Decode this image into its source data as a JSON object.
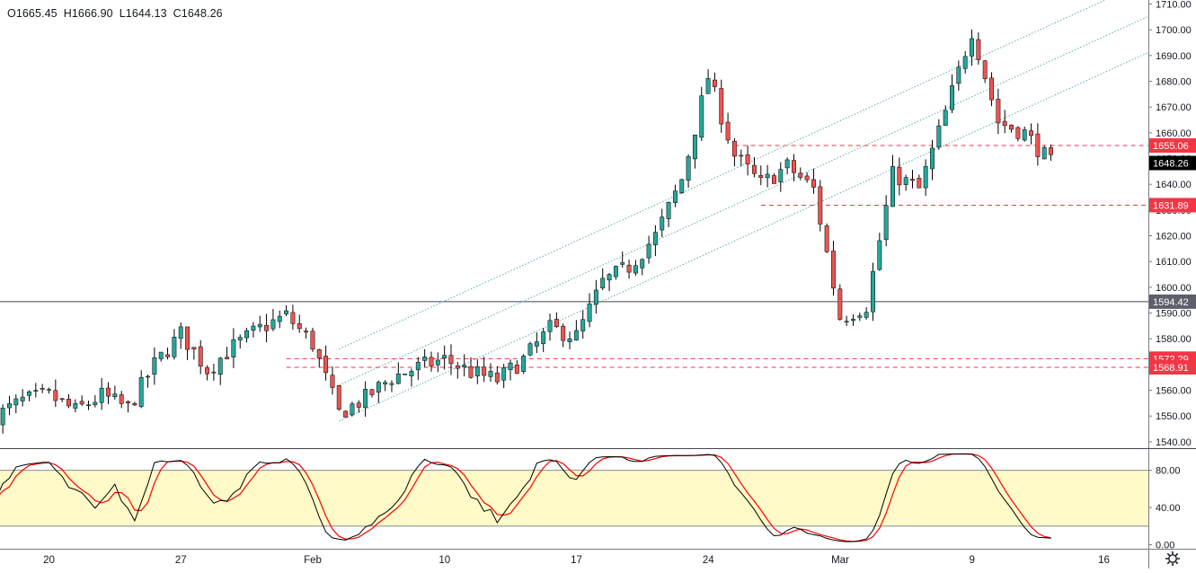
{
  "header": {
    "open_text": "O1665.45",
    "high_text": "H1666.90",
    "low_text": "L1644.13",
    "close_text": "C1648.26"
  },
  "colors": {
    "up": "#26a69a",
    "down": "#ef5350",
    "level_line": "#f23645",
    "last_price_label": "#000000",
    "h_line": "#434651",
    "channel": "#5fa8b3",
    "stoch_k": "#000000",
    "stoch_d": "#ff0000",
    "stoch_band": "#fffac8"
  },
  "settings_icon": "gear-icon",
  "chart_data": {
    "type": "candlestick",
    "price_axis": {
      "ylim": [
        1535,
        1713
      ],
      "ticks": [
        1540,
        1550,
        1560,
        1570,
        1580,
        1590,
        1600,
        1610,
        1620,
        1630,
        1640,
        1650,
        1660,
        1670,
        1680,
        1690,
        1700,
        1710
      ],
      "tick_labels": [
        "1540.00",
        "1550.00",
        "1560.00",
        "1570.00",
        "1580.00",
        "1590.00",
        "1600.00",
        "1610.00",
        "1620.00",
        "1630.00",
        "1640.00",
        "1650.00",
        "1660.00",
        "1670.00",
        "1680.00",
        "1690.00",
        "1700.00",
        "1710.00"
      ]
    },
    "time_axis": {
      "labels": [
        {
          "label": "20",
          "date": "2020-01-20"
        },
        {
          "label": "27",
          "date": "2020-01-27"
        },
        {
          "label": "Feb",
          "date": "2020-02-03"
        },
        {
          "label": "10",
          "date": "2020-02-10"
        },
        {
          "label": "17",
          "date": "2020-02-17"
        },
        {
          "label": "24",
          "date": "2020-02-24"
        },
        {
          "label": "Mar",
          "date": "2020-03-02"
        },
        {
          "label": "9",
          "date": "2020-03-09"
        },
        {
          "label": "16",
          "date": "2020-03-16"
        }
      ]
    },
    "price_path": [
      [
        "2020-01-16",
        1550
      ],
      [
        "2020-01-17",
        1556
      ],
      [
        "2020-01-20",
        1558
      ],
      [
        "2020-01-21",
        1552
      ],
      [
        "2020-01-22",
        1558
      ],
      [
        "2020-01-23",
        1553
      ],
      [
        "2020-01-24",
        1570
      ],
      [
        "2020-01-27",
        1582
      ],
      [
        "2020-01-28",
        1568
      ],
      [
        "2020-01-29",
        1577
      ],
      [
        "2020-01-30",
        1584
      ],
      [
        "2020-01-31",
        1589
      ],
      [
        "2020-02-03",
        1578
      ],
      [
        "2020-02-04",
        1551
      ],
      [
        "2020-02-05",
        1557
      ],
      [
        "2020-02-06",
        1565
      ],
      [
        "2020-02-07",
        1569
      ],
      [
        "2020-02-10",
        1572
      ],
      [
        "2020-02-11",
        1567
      ],
      [
        "2020-02-12",
        1564
      ],
      [
        "2020-02-13",
        1572
      ],
      [
        "2020-02-14",
        1584
      ],
      [
        "2020-02-17",
        1581
      ],
      [
        "2020-02-18",
        1602
      ],
      [
        "2020-02-19",
        1608
      ],
      [
        "2020-02-20",
        1620
      ],
      [
        "2020-02-21",
        1642
      ],
      [
        "2020-02-24",
        1682
      ],
      [
        "2020-02-25",
        1651
      ],
      [
        "2020-02-26",
        1640
      ],
      [
        "2020-02-27",
        1647
      ],
      [
        "2020-02-28",
        1638
      ],
      [
        "2020-03-02",
        1588
      ],
      [
        "2020-03-03",
        1593
      ],
      [
        "2020-03-04",
        1644
      ],
      [
        "2020-03-05",
        1638
      ],
      [
        "2020-03-06",
        1668
      ],
      [
        "2020-03-09",
        1700
      ],
      [
        "2020-03-10",
        1664
      ],
      [
        "2020-03-11",
        1660
      ],
      [
        "2020-03-12",
        1648
      ]
    ],
    "horizontal_lines": [
      {
        "price": 1594.42,
        "label": "1594.42",
        "style": "solid"
      }
    ],
    "levels": [
      {
        "price": 1655.06,
        "label": "1655.06",
        "from": "2020-02-25"
      },
      {
        "price": 1631.89,
        "label": "1631.89",
        "from": "2020-02-26"
      },
      {
        "price": 1572.29,
        "label": "1572.29",
        "from": "2020-02-01"
      },
      {
        "price": 1568.91,
        "label": "1568.91",
        "from": "2020-02-01"
      }
    ],
    "last_price": {
      "price": 1648.26,
      "label": "1648.26"
    },
    "channel": {
      "start": [
        "2020-02-04",
        1548
      ],
      "end": [
        "2020-03-12",
        1674
      ],
      "upper_offset": 28,
      "middle_offset": 14
    },
    "oscillator": {
      "type": "stochastic",
      "ylim": [
        -5,
        105
      ],
      "band": [
        20,
        80
      ],
      "ticks": [
        0,
        40,
        80
      ],
      "tick_labels": [
        "0.00",
        "40.00",
        "80.00"
      ]
    }
  }
}
